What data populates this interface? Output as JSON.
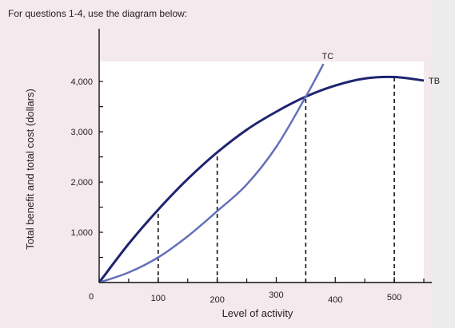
{
  "heading": "For questions 1-4, use the diagram below:",
  "chart_data": {
    "type": "line",
    "title": "",
    "xlabel": "Level of activity",
    "ylabel": "Total benefit and total cost (dollars)",
    "xlim": [
      0,
      550
    ],
    "ylim": [
      0,
      4400
    ],
    "x_ticks": [
      0,
      100,
      200,
      300,
      400,
      500
    ],
    "y_ticks": [
      1000,
      2000,
      3000,
      4000
    ],
    "x_tick_labels": [
      "0",
      "100",
      "200",
      "300",
      "400",
      "500"
    ],
    "y_tick_labels": [
      "1,000",
      "2,000",
      "3,000",
      "4,000"
    ],
    "series": [
      {
        "name": "TB",
        "color": "#1f2370",
        "x": [
          0,
          50,
          100,
          150,
          200,
          250,
          300,
          350,
          400,
          450,
          500,
          550
        ],
        "y": [
          0,
          770,
          1450,
          2060,
          2590,
          3040,
          3400,
          3700,
          3920,
          4060,
          4090,
          4020
        ]
      },
      {
        "name": "TC",
        "color": "#6470b8",
        "x": [
          0,
          50,
          100,
          150,
          200,
          250,
          300,
          350,
          380
        ],
        "y": [
          0,
          200,
          500,
          920,
          1420,
          1950,
          2700,
          3700,
          4350
        ]
      }
    ],
    "reference_lines": [
      {
        "x": 100,
        "y": 1450
      },
      {
        "x": 200,
        "y": 2590
      },
      {
        "x": 350,
        "y": 3700
      },
      {
        "x": 500,
        "y": 4090
      }
    ],
    "grid": false,
    "legend": "curve-end labels"
  }
}
